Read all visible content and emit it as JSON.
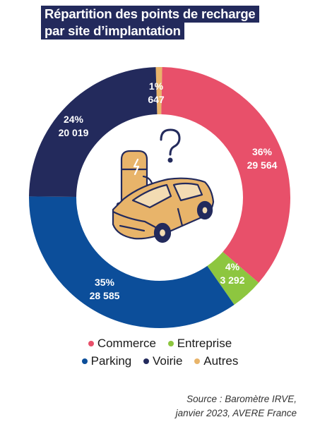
{
  "title": {
    "line1": "Répartition des points de recharge",
    "line2": "par site d’implantation"
  },
  "source": {
    "line1": "Source : Baromètre IRVE,",
    "line2": "janvier 2023, AVERE France"
  },
  "chart_data": {
    "type": "pie",
    "variant": "donut",
    "title": "Répartition des points de recharge par site d’implantation",
    "legend_position": "bottom",
    "slices": [
      {
        "name": "Autres",
        "percent_label": "1%",
        "value": 647,
        "value_label": "647",
        "color": "#e8b46a"
      },
      {
        "name": "Commerce",
        "percent_label": "36%",
        "value": 29564,
        "value_label": "29 564",
        "color": "#e8506a"
      },
      {
        "name": "Entreprise",
        "percent_label": "4%",
        "value": 3292,
        "value_label": "3 292",
        "color": "#8dc63f"
      },
      {
        "name": "Parking",
        "percent_label": "35%",
        "value": 28585,
        "value_label": "28 585",
        "color": "#0c4e9a"
      },
      {
        "name": "Voirie",
        "percent_label": "24%",
        "value": 20019,
        "value_label": "20 019",
        "color": "#232a5c"
      }
    ],
    "legend_order": [
      "Commerce",
      "Entreprise",
      "Parking",
      "Voirie",
      "Autres"
    ]
  },
  "center_illustration": {
    "icons": [
      "charging-station-icon",
      "car-icon",
      "question-mark-icon"
    ],
    "colors": {
      "stroke": "#232a5c",
      "fill": "#e8b46a",
      "light": "#f3dcb3"
    }
  }
}
